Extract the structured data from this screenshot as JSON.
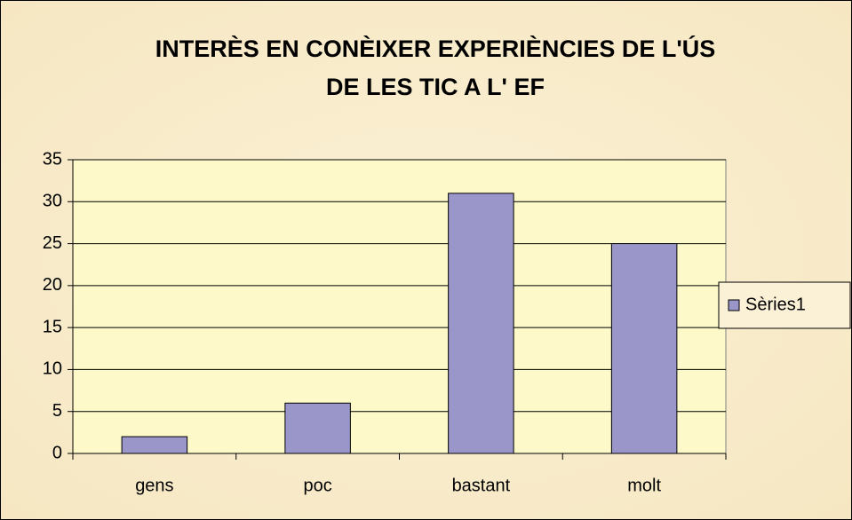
{
  "chart_data": {
    "type": "bar",
    "title": [
      "INTERÈS EN CONÈIXER EXPERIÈNCIES DE L'ÚS",
      "DE LES TIC A L' EF"
    ],
    "categories": [
      "gens",
      "poc",
      "bastant",
      "molt"
    ],
    "series": [
      {
        "name": "Sèries1",
        "color": "#9b96c9",
        "values": [
          2,
          6,
          31,
          25
        ]
      }
    ],
    "ylim": [
      0,
      35
    ],
    "yticks": [
      0,
      5,
      10,
      15,
      20,
      25,
      30,
      35
    ],
    "grid": true,
    "legend": "right"
  }
}
